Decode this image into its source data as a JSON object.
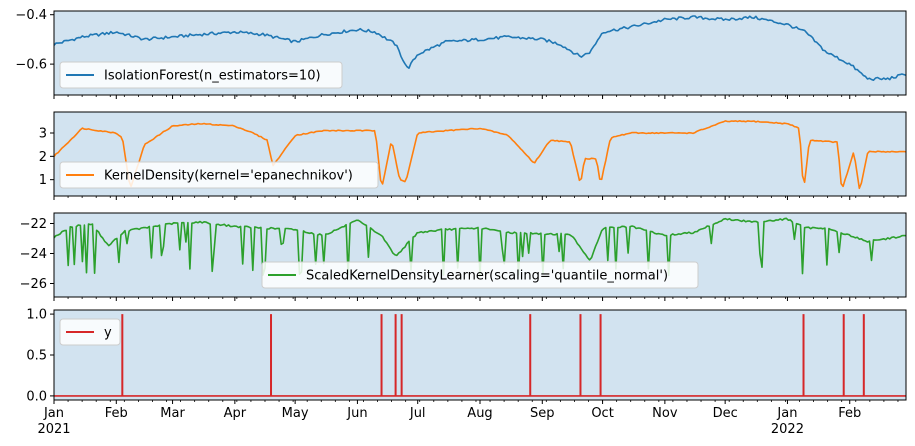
{
  "chart_data": [
    {
      "type": "line",
      "panel": 1,
      "ylim": [
        -0.725,
        -0.385
      ],
      "yticks": [
        -0.6,
        -0.4
      ],
      "ytick_labels": [
        "−0.6",
        "−0.4"
      ],
      "background": "#d2e3f0",
      "grid": false,
      "legend_placement": "lower-left",
      "series": [
        {
          "name": "IsolationForest(n_estimators=10)",
          "color": "#1f77b4",
          "x": [
            "2021-01-01",
            "2021-01-15",
            "2021-02-01",
            "2021-02-15",
            "2021-03-01",
            "2021-03-15",
            "2021-04-01",
            "2021-04-15",
            "2021-05-01",
            "2021-05-15",
            "2021-06-01",
            "2021-06-10",
            "2021-06-20",
            "2021-06-26",
            "2021-07-01",
            "2021-07-15",
            "2021-08-01",
            "2021-08-15",
            "2021-09-01",
            "2021-09-10",
            "2021-09-20",
            "2021-09-25",
            "2021-10-01",
            "2021-10-15",
            "2021-11-01",
            "2021-11-15",
            "2021-12-01",
            "2021-12-15",
            "2022-01-01",
            "2022-01-10",
            "2022-01-20",
            "2022-02-01",
            "2022-02-10",
            "2022-02-20",
            "2022-03-01"
          ],
          "y": [
            -0.52,
            -0.49,
            -0.47,
            -0.5,
            -0.49,
            -0.48,
            -0.47,
            -0.48,
            -0.51,
            -0.48,
            -0.46,
            -0.47,
            -0.52,
            -0.62,
            -0.56,
            -0.51,
            -0.5,
            -0.49,
            -0.5,
            -0.52,
            -0.57,
            -0.55,
            -0.47,
            -0.45,
            -0.42,
            -0.41,
            -0.42,
            -0.41,
            -0.44,
            -0.47,
            -0.55,
            -0.6,
            -0.66,
            -0.66,
            -0.64
          ]
        }
      ]
    },
    {
      "type": "line",
      "panel": 2,
      "ylim": [
        0.3,
        3.9
      ],
      "yticks": [
        1,
        2,
        3
      ],
      "ytick_labels": [
        "1",
        "2",
        "3"
      ],
      "background": "#d2e3f0",
      "grid": false,
      "legend_placement": "lower-left",
      "series": [
        {
          "name": "KernelDensity(kernel='epanechnikov')",
          "color": "#ff7f0e",
          "x": [
            "2021-01-01",
            "2021-01-15",
            "2021-02-01",
            "2021-02-04",
            "2021-02-08",
            "2021-02-15",
            "2021-03-01",
            "2021-03-15",
            "2021-04-01",
            "2021-04-10",
            "2021-04-17",
            "2021-04-20",
            "2021-05-01",
            "2021-05-15",
            "2021-06-01",
            "2021-06-10",
            "2021-06-13",
            "2021-06-18",
            "2021-06-22",
            "2021-06-25",
            "2021-07-01",
            "2021-07-15",
            "2021-08-01",
            "2021-08-15",
            "2021-08-28",
            "2021-09-05",
            "2021-09-15",
            "2021-09-20",
            "2021-09-22",
            "2021-09-28",
            "2021-09-30",
            "2021-10-05",
            "2021-10-15",
            "2021-11-01",
            "2021-11-15",
            "2021-12-01",
            "2021-12-15",
            "2022-01-01",
            "2022-01-07",
            "2022-01-09",
            "2022-01-12",
            "2022-01-26",
            "2022-01-28",
            "2022-02-03",
            "2022-02-06",
            "2022-02-10",
            "2022-03-01"
          ],
          "y": [
            2.0,
            3.2,
            3.0,
            2.8,
            0.6,
            2.5,
            3.3,
            3.4,
            3.3,
            3.0,
            2.7,
            1.6,
            2.9,
            3.1,
            3.1,
            3.1,
            0.6,
            2.7,
            1.0,
            0.9,
            3.0,
            3.1,
            3.2,
            2.9,
            1.7,
            2.7,
            2.6,
            0.8,
            1.9,
            1.9,
            0.8,
            2.8,
            3.0,
            3.0,
            3.0,
            3.5,
            3.5,
            3.4,
            3.2,
            0.5,
            2.7,
            2.6,
            0.5,
            2.2,
            0.5,
            2.2,
            2.2
          ]
        }
      ]
    },
    {
      "type": "line",
      "panel": 3,
      "ylim": [
        -26.9,
        -21.3
      ],
      "yticks": [
        -26,
        -24,
        -22
      ],
      "ytick_labels": [
        "−26",
        "−24",
        "−22"
      ],
      "background": "#d2e3f0",
      "grid": false,
      "legend_placement": "lower-right",
      "series": [
        {
          "name": "ScaledKernelDensityLearner(scaling='quantile_normal')",
          "color": "#2ca02c",
          "x": [
            "2021-01-01",
            "2021-01-10",
            "2021-01-20",
            "2021-01-28",
            "2021-02-05",
            "2021-02-15",
            "2021-03-01",
            "2021-03-15",
            "2021-04-01",
            "2021-04-15",
            "2021-05-01",
            "2021-05-15",
            "2021-06-01",
            "2021-06-13",
            "2021-06-20",
            "2021-07-01",
            "2021-07-15",
            "2021-08-01",
            "2021-08-15",
            "2021-09-01",
            "2021-09-15",
            "2021-09-25",
            "2021-10-01",
            "2021-10-15",
            "2021-11-01",
            "2021-11-15",
            "2021-12-01",
            "2021-12-15",
            "2022-01-01",
            "2022-01-10",
            "2022-01-20",
            "2022-02-01",
            "2022-02-10",
            "2022-02-20",
            "2022-03-01"
          ],
          "y": [
            -22.9,
            -22.2,
            -22.0,
            -23.5,
            -22.5,
            -22.3,
            -22.0,
            -21.9,
            -22.2,
            -22.3,
            -22.4,
            -22.8,
            -21.8,
            -22.8,
            -24.2,
            -22.6,
            -22.4,
            -22.3,
            -22.6,
            -22.7,
            -22.7,
            -24.5,
            -22.3,
            -22.2,
            -22.8,
            -22.6,
            -21.7,
            -21.9,
            -21.7,
            -22.3,
            -22.3,
            -22.8,
            -23.2,
            -23.0,
            -22.8
          ]
        }
      ]
    },
    {
      "type": "line",
      "panel": 4,
      "ylim": [
        -0.05,
        1.05
      ],
      "yticks": [
        0.0,
        0.5,
        1.0
      ],
      "ytick_labels": [
        "0.0",
        "0.5",
        "1.0"
      ],
      "background": "#d2e3f0",
      "grid": false,
      "legend_placement": "top-left",
      "series": [
        {
          "name": "y",
          "color": "#d62728",
          "baseline": 0,
          "spike_value": 1,
          "spike_dates": [
            "2021-02-04",
            "2021-04-19",
            "2021-06-13",
            "2021-06-20",
            "2021-06-23",
            "2021-08-26",
            "2021-09-20",
            "2021-09-30",
            "2022-01-09",
            "2022-01-29",
            "2022-02-08"
          ]
        }
      ]
    }
  ],
  "x_axis": {
    "range": [
      "2021-01-01",
      "2022-03-01"
    ],
    "ticks": [
      {
        "date": "2021-01-01",
        "label": "Jan",
        "year_label": "2021"
      },
      {
        "date": "2021-02-01",
        "label": "Feb"
      },
      {
        "date": "2021-03-01",
        "label": "Mar"
      },
      {
        "date": "2021-04-01",
        "label": "Apr"
      },
      {
        "date": "2021-05-01",
        "label": "May"
      },
      {
        "date": "2021-06-01",
        "label": "Jun"
      },
      {
        "date": "2021-07-01",
        "label": "Jul"
      },
      {
        "date": "2021-08-01",
        "label": "Aug"
      },
      {
        "date": "2021-09-01",
        "label": "Sep"
      },
      {
        "date": "2021-10-01",
        "label": "Oct"
      },
      {
        "date": "2021-11-01",
        "label": "Nov"
      },
      {
        "date": "2021-12-01",
        "label": "Dec"
      },
      {
        "date": "2022-01-01",
        "label": "Jan",
        "year_label": "2022"
      },
      {
        "date": "2022-02-01",
        "label": "Feb"
      }
    ]
  }
}
